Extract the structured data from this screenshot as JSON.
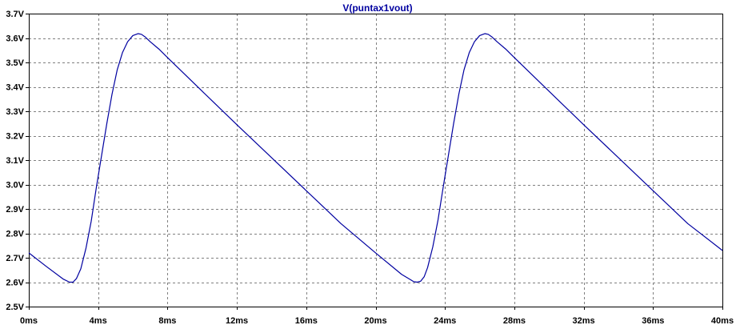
{
  "chart_data": {
    "type": "line",
    "title": "V(puntax1vout)",
    "xlabel": "",
    "ylabel": "",
    "x_unit": "ms",
    "y_unit": "V",
    "xlim": [
      0,
      40
    ],
    "ylim": [
      2.5,
      3.7
    ],
    "x_ticks": [
      0,
      4,
      8,
      12,
      16,
      20,
      24,
      28,
      32,
      36,
      40
    ],
    "y_ticks": [
      2.5,
      2.6,
      2.7,
      2.8,
      2.9,
      3.0,
      3.1,
      3.2,
      3.3,
      3.4,
      3.5,
      3.6,
      3.7
    ],
    "x_tick_labels": [
      "0ms",
      "4ms",
      "8ms",
      "12ms",
      "16ms",
      "20ms",
      "24ms",
      "28ms",
      "32ms",
      "36ms",
      "40ms"
    ],
    "y_tick_labels": [
      "2.5V",
      "2.6V",
      "2.7V",
      "2.8V",
      "2.9V",
      "3.0V",
      "3.1V",
      "3.2V",
      "3.3V",
      "3.4V",
      "3.5V",
      "3.6V",
      "3.7V"
    ],
    "grid": true,
    "colors": {
      "trace": "#0000a0",
      "title": "#0000a0",
      "grid": "#808080",
      "axis": "#000000",
      "background": "#ffffff"
    },
    "series": [
      {
        "name": "V(puntax1vout)",
        "x": [
          0,
          1.0,
          2.0,
          2.35,
          2.55,
          2.75,
          3.0,
          3.3,
          3.6,
          3.9,
          4.2,
          4.5,
          4.8,
          5.1,
          5.4,
          5.7,
          6.0,
          6.3,
          6.5,
          6.7,
          7.0,
          7.5,
          8.0,
          10.0,
          12.0,
          14.0,
          16.0,
          18.0,
          20.0,
          21.5,
          22.2,
          22.4,
          22.6,
          22.8,
          23.0,
          23.3,
          23.6,
          23.9,
          24.2,
          24.5,
          24.8,
          25.1,
          25.4,
          25.7,
          26.0,
          26.3,
          26.5,
          26.7,
          27.0,
          27.5,
          28.0,
          30.0,
          32.0,
          34.0,
          36.0,
          38.0,
          40.0
        ],
        "y": [
          2.72,
          2.665,
          2.612,
          2.6,
          2.6,
          2.615,
          2.655,
          2.74,
          2.85,
          2.99,
          3.12,
          3.25,
          3.37,
          3.47,
          3.54,
          3.585,
          3.61,
          3.618,
          3.615,
          3.605,
          3.585,
          3.555,
          3.52,
          3.382,
          3.245,
          3.11,
          2.975,
          2.84,
          2.72,
          2.632,
          2.602,
          2.6,
          2.604,
          2.622,
          2.66,
          2.745,
          2.855,
          2.99,
          3.12,
          3.25,
          3.37,
          3.47,
          3.54,
          3.585,
          3.61,
          3.618,
          3.615,
          3.605,
          3.585,
          3.555,
          3.52,
          3.382,
          3.245,
          3.11,
          2.975,
          2.84,
          2.73
        ]
      }
    ]
  }
}
